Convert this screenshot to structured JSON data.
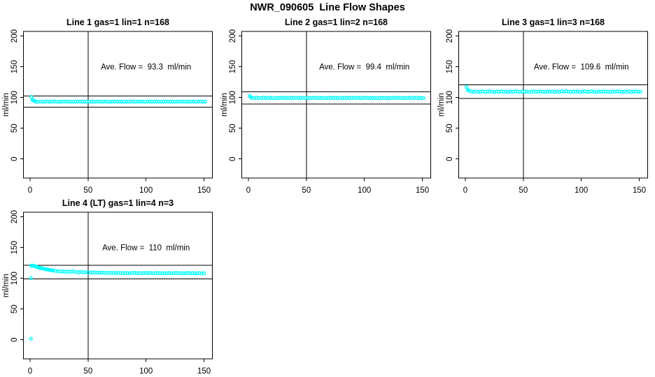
{
  "main_title": "NWR_090605  Line Flow Shapes",
  "colors": {
    "point_color": "#00ffff",
    "axis_color": "#000000",
    "background": "#ffffff"
  },
  "chart_data": [
    {
      "type": "scatter",
      "title": "Line 1 gas=1 lin=1 n=168",
      "annotation": "Ave. Flow =  93.3  ml/min",
      "ave_flow": 93.3,
      "ylabel": "ml/min",
      "x_ticks": [
        0,
        50,
        100,
        150
      ],
      "y_ticks": [
        0,
        50,
        100,
        150,
        200
      ],
      "x_range": [
        -5.7,
        157.2
      ],
      "y_range": [
        -31,
        207.5
      ],
      "vline_x": 50,
      "ref_lines": [
        102.6,
        84.0
      ],
      "annotation_pos": [
        100,
        150
      ],
      "points": [
        [
          1,
          101
        ],
        [
          2,
          96.5
        ],
        [
          3,
          95.2
        ],
        [
          4,
          94.4
        ],
        [
          5,
          93.4
        ],
        [
          7,
          93.1
        ],
        [
          9,
          93.5
        ],
        [
          11,
          92.9
        ],
        [
          13,
          93.3
        ],
        [
          15,
          93.6
        ],
        [
          17,
          93.0
        ],
        [
          19,
          93.2
        ],
        [
          21,
          93.5
        ],
        [
          23,
          93.1
        ],
        [
          25,
          92.9
        ],
        [
          27,
          93.4
        ],
        [
          29,
          93.2
        ],
        [
          31,
          93.5
        ],
        [
          33,
          93.0
        ],
        [
          35,
          93.3
        ],
        [
          37,
          92.9
        ],
        [
          39,
          93.4
        ],
        [
          41,
          93.1
        ],
        [
          43,
          93.6
        ],
        [
          45,
          93.2
        ],
        [
          47,
          93.0
        ],
        [
          49,
          93.4
        ],
        [
          51,
          93.1
        ],
        [
          53,
          93.5
        ],
        [
          55,
          92.9
        ],
        [
          57,
          93.3
        ],
        [
          59,
          93.6
        ],
        [
          61,
          93.0
        ],
        [
          63,
          93.2
        ],
        [
          65,
          93.5
        ],
        [
          67,
          93.1
        ],
        [
          69,
          92.9
        ],
        [
          71,
          93.4
        ],
        [
          73,
          93.2
        ],
        [
          75,
          93.5
        ],
        [
          77,
          93.0
        ],
        [
          79,
          93.3
        ],
        [
          81,
          92.9
        ],
        [
          83,
          93.4
        ],
        [
          85,
          93.1
        ],
        [
          87,
          93.6
        ],
        [
          89,
          93.2
        ],
        [
          91,
          93.0
        ],
        [
          93,
          93.4
        ],
        [
          95,
          93.1
        ],
        [
          97,
          93.5
        ],
        [
          99,
          92.9
        ],
        [
          101,
          93.3
        ],
        [
          103,
          93.6
        ],
        [
          105,
          93.0
        ],
        [
          107,
          93.2
        ],
        [
          109,
          93.5
        ],
        [
          111,
          93.1
        ],
        [
          113,
          92.9
        ],
        [
          115,
          93.4
        ],
        [
          117,
          93.2
        ],
        [
          119,
          93.5
        ],
        [
          121,
          93.0
        ],
        [
          123,
          93.3
        ],
        [
          125,
          92.9
        ],
        [
          127,
          93.4
        ],
        [
          129,
          93.1
        ],
        [
          131,
          93.6
        ],
        [
          133,
          93.2
        ],
        [
          135,
          93.0
        ],
        [
          137,
          93.4
        ],
        [
          139,
          93.1
        ],
        [
          141,
          93.5
        ],
        [
          143,
          92.9
        ],
        [
          145,
          93.3
        ],
        [
          147,
          93.6
        ],
        [
          149,
          93.0
        ],
        [
          151,
          93.2
        ]
      ]
    },
    {
      "type": "scatter",
      "title": "Line 2 gas=1 lin=2 n=168",
      "annotation": "Ave. Flow =  99.4  ml/min",
      "ave_flow": 99.4,
      "ylabel": "ml/min",
      "x_ticks": [
        0,
        50,
        100,
        150
      ],
      "y_ticks": [
        0,
        50,
        100,
        150,
        200
      ],
      "x_range": [
        -5.7,
        157.2
      ],
      "y_range": [
        -31,
        207.5
      ],
      "vline_x": 50,
      "ref_lines": [
        109.3,
        89.5
      ],
      "annotation_pos": [
        100,
        150
      ],
      "points": [
        [
          1,
          102.6
        ],
        [
          2,
          100.6
        ],
        [
          3,
          99.5
        ],
        [
          5,
          99.1
        ],
        [
          7,
          99.7
        ],
        [
          9,
          98.9
        ],
        [
          11,
          99.4
        ],
        [
          13,
          99.8
        ],
        [
          15,
          99.0
        ],
        [
          17,
          99.3
        ],
        [
          19,
          99.6
        ],
        [
          21,
          99.2
        ],
        [
          23,
          98.8
        ],
        [
          25,
          99.5
        ],
        [
          27,
          99.3
        ],
        [
          29,
          99.7
        ],
        [
          31,
          99.0
        ],
        [
          33,
          99.4
        ],
        [
          35,
          98.9
        ],
        [
          37,
          99.6
        ],
        [
          39,
          99.2
        ],
        [
          41,
          99.8
        ],
        [
          43,
          99.3
        ],
        [
          45,
          99.0
        ],
        [
          47,
          99.5
        ],
        [
          49,
          99.2
        ],
        [
          51,
          99.7
        ],
        [
          53,
          98.9
        ],
        [
          55,
          99.4
        ],
        [
          57,
          99.8
        ],
        [
          59,
          99.1
        ],
        [
          61,
          99.3
        ],
        [
          63,
          99.6
        ],
        [
          65,
          99.2
        ],
        [
          67,
          98.9
        ],
        [
          69,
          99.5
        ],
        [
          71,
          99.3
        ],
        [
          73,
          99.7
        ],
        [
          75,
          99.0
        ],
        [
          77,
          99.4
        ],
        [
          79,
          98.9
        ],
        [
          81,
          99.6
        ],
        [
          83,
          99.2
        ],
        [
          85,
          99.8
        ],
        [
          87,
          99.3
        ],
        [
          89,
          99.1
        ],
        [
          91,
          99.5
        ],
        [
          93,
          99.2
        ],
        [
          95,
          99.7
        ],
        [
          97,
          98.9
        ],
        [
          99,
          99.4
        ],
        [
          101,
          99.8
        ],
        [
          103,
          99.0
        ],
        [
          105,
          99.3
        ],
        [
          107,
          99.6
        ],
        [
          109,
          99.1
        ],
        [
          111,
          98.9
        ],
        [
          113,
          99.5
        ],
        [
          115,
          99.3
        ],
        [
          117,
          99.7
        ],
        [
          119,
          99.0
        ],
        [
          121,
          99.4
        ],
        [
          123,
          98.9
        ],
        [
          125,
          99.6
        ],
        [
          127,
          99.2
        ],
        [
          129,
          99.8
        ],
        [
          131,
          99.3
        ],
        [
          133,
          99.0
        ],
        [
          135,
          99.5
        ],
        [
          137,
          99.1
        ],
        [
          139,
          99.7
        ],
        [
          141,
          98.9
        ],
        [
          143,
          99.4
        ],
        [
          145,
          99.8
        ],
        [
          147,
          99.0
        ],
        [
          149,
          99.3
        ],
        [
          151,
          99.2
        ]
      ]
    },
    {
      "type": "scatter",
      "title": "Line 3 gas=1 lin=3 n=168",
      "annotation": "Ave. Flow =  109.6  ml/min",
      "ave_flow": 109.6,
      "ylabel": "ml/min",
      "x_ticks": [
        0,
        50,
        100,
        150
      ],
      "y_ticks": [
        0,
        50,
        100,
        150,
        200
      ],
      "x_range": [
        -5.7,
        157.2
      ],
      "y_range": [
        -31,
        207.5
      ],
      "vline_x": 50,
      "ref_lines": [
        120.6,
        98.6
      ],
      "annotation_pos": [
        100,
        150
      ],
      "points": [
        [
          1,
          117.3
        ],
        [
          2,
          112.6
        ],
        [
          3,
          111.2
        ],
        [
          5,
          109.8
        ],
        [
          7,
          109.3
        ],
        [
          9,
          110.1
        ],
        [
          11,
          109.0
        ],
        [
          13,
          109.6
        ],
        [
          15,
          110.2
        ],
        [
          17,
          109.2
        ],
        [
          19,
          109.5
        ],
        [
          21,
          110.0
        ],
        [
          23,
          109.4
        ],
        [
          25,
          108.9
        ],
        [
          27,
          109.8
        ],
        [
          29,
          109.5
        ],
        [
          31,
          110.1
        ],
        [
          33,
          109.1
        ],
        [
          35,
          109.6
        ],
        [
          37,
          108.9
        ],
        [
          39,
          110.0
        ],
        [
          41,
          109.3
        ],
        [
          43,
          110.2
        ],
        [
          45,
          109.5
        ],
        [
          47,
          109.1
        ],
        [
          49,
          109.8
        ],
        [
          51,
          109.4
        ],
        [
          53,
          110.1
        ],
        [
          55,
          108.9
        ],
        [
          57,
          109.6
        ],
        [
          59,
          110.2
        ],
        [
          61,
          109.2
        ],
        [
          63,
          109.5
        ],
        [
          65,
          110.0
        ],
        [
          67,
          109.3
        ],
        [
          69,
          108.9
        ],
        [
          71,
          109.8
        ],
        [
          73,
          109.5
        ],
        [
          75,
          110.1
        ],
        [
          77,
          109.1
        ],
        [
          79,
          109.6
        ],
        [
          81,
          108.9
        ],
        [
          83,
          110.0
        ],
        [
          85,
          109.3
        ],
        [
          87,
          110.2
        ],
        [
          89,
          109.5
        ],
        [
          91,
          109.1
        ],
        [
          93,
          109.8
        ],
        [
          95,
          109.4
        ],
        [
          97,
          110.1
        ],
        [
          99,
          108.9
        ],
        [
          101,
          109.6
        ],
        [
          103,
          110.2
        ],
        [
          105,
          109.2
        ],
        [
          107,
          109.5
        ],
        [
          109,
          110.0
        ],
        [
          111,
          109.3
        ],
        [
          113,
          108.9
        ],
        [
          115,
          109.8
        ],
        [
          117,
          109.5
        ],
        [
          119,
          110.1
        ],
        [
          121,
          109.1
        ],
        [
          123,
          109.6
        ],
        [
          125,
          108.9
        ],
        [
          127,
          110.0
        ],
        [
          129,
          109.4
        ],
        [
          131,
          110.2
        ],
        [
          133,
          109.5
        ],
        [
          135,
          109.1
        ],
        [
          137,
          109.8
        ],
        [
          139,
          109.3
        ],
        [
          141,
          110.1
        ],
        [
          143,
          108.9
        ],
        [
          145,
          109.6
        ],
        [
          147,
          110.2
        ],
        [
          149,
          109.2
        ],
        [
          151,
          109.5
        ]
      ]
    },
    {
      "type": "scatter",
      "title": "Line 4 (LT) gas=1 lin=4 n=3",
      "annotation": "Ave. Flow =  110  ml/min",
      "ave_flow": 110,
      "ylabel": "ml/min",
      "x_ticks": [
        0,
        50,
        100,
        150
      ],
      "y_ticks": [
        0,
        50,
        100,
        150,
        200
      ],
      "x_range": [
        -5.7,
        157.2
      ],
      "y_range": [
        -31,
        207.5
      ],
      "vline_x": 50,
      "ref_lines": [
        121.0,
        99.0
      ],
      "annotation_pos": [
        100,
        150
      ],
      "points": [
        [
          0.7,
          100.3
        ],
        [
          0.7,
          1.8
        ],
        [
          1,
          120.6
        ],
        [
          2,
          120.9
        ],
        [
          3,
          120.4
        ],
        [
          4,
          119.8
        ],
        [
          5,
          119.2
        ],
        [
          6,
          118.6
        ],
        [
          7,
          118.0
        ],
        [
          8,
          117.4
        ],
        [
          9,
          116.9
        ],
        [
          10,
          116.4
        ],
        [
          11,
          115.9
        ],
        [
          12,
          115.5
        ],
        [
          13,
          115.1
        ],
        [
          14,
          114.7
        ],
        [
          15,
          114.3
        ],
        [
          16,
          114.0
        ],
        [
          17,
          113.6
        ],
        [
          18,
          113.3
        ],
        [
          19,
          113.0
        ],
        [
          20,
          112.7
        ],
        [
          22,
          112.2
        ],
        [
          24,
          111.7
        ],
        [
          26,
          111.3
        ],
        [
          28,
          111.0
        ],
        [
          30,
          110.7
        ],
        [
          32,
          111.1
        ],
        [
          34,
          110.4
        ],
        [
          36,
          111.3
        ],
        [
          38,
          110.8
        ],
        [
          40,
          110.2
        ],
        [
          42,
          109.8
        ],
        [
          44,
          110.4
        ],
        [
          46,
          109.6
        ],
        [
          48,
          110.1
        ],
        [
          50,
          109.4
        ],
        [
          52,
          109.9
        ],
        [
          54,
          109.3
        ],
        [
          56,
          109.7
        ],
        [
          58,
          109.1
        ],
        [
          60,
          109.5
        ],
        [
          62,
          108.9
        ],
        [
          64,
          109.4
        ],
        [
          66,
          108.8
        ],
        [
          68,
          109.2
        ],
        [
          70,
          108.7
        ],
        [
          72,
          109.1
        ],
        [
          74,
          108.6
        ],
        [
          76,
          109.0
        ],
        [
          78,
          108.5
        ],
        [
          80,
          108.9
        ],
        [
          82,
          108.4
        ],
        [
          84,
          108.8
        ],
        [
          86,
          108.3
        ],
        [
          88,
          108.7
        ],
        [
          90,
          109.0
        ],
        [
          92,
          108.4
        ],
        [
          94,
          108.8
        ],
        [
          96,
          108.2
        ],
        [
          98,
          108.6
        ],
        [
          100,
          109.0
        ],
        [
          102,
          108.3
        ],
        [
          104,
          108.7
        ],
        [
          106,
          108.1
        ],
        [
          108,
          108.5
        ],
        [
          110,
          108.9
        ],
        [
          112,
          108.2
        ],
        [
          114,
          108.6
        ],
        [
          116,
          108.0
        ],
        [
          118,
          108.4
        ],
        [
          120,
          108.8
        ],
        [
          122,
          108.1
        ],
        [
          124,
          108.5
        ],
        [
          126,
          108.9
        ],
        [
          128,
          108.2
        ],
        [
          130,
          108.6
        ],
        [
          132,
          108.0
        ],
        [
          134,
          108.4
        ],
        [
          136,
          108.7
        ],
        [
          138,
          108.1
        ],
        [
          140,
          108.5
        ],
        [
          142,
          107.9
        ],
        [
          144,
          108.3
        ],
        [
          146,
          108.6
        ],
        [
          148,
          108.0
        ],
        [
          150,
          108.3
        ]
      ]
    }
  ]
}
